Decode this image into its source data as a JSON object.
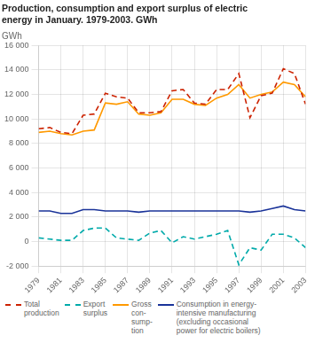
{
  "chart_data": {
    "type": "line",
    "title": "Production, consumption and export surplus of electric\nenergy in January. 1979-2003. GWh",
    "ylabel": "GWh",
    "x": [
      1979,
      1980,
      1981,
      1982,
      1983,
      1984,
      1985,
      1986,
      1987,
      1988,
      1989,
      1990,
      1991,
      1992,
      1993,
      1994,
      1995,
      1996,
      1997,
      1998,
      1999,
      2000,
      2001,
      2002,
      2003
    ],
    "series": [
      {
        "name": "Total\nproduction",
        "color": "#cc2200",
        "line_style": "dashed",
        "values": [
          9200,
          9300,
          8900,
          8800,
          10300,
          10400,
          12100,
          11800,
          11700,
          10500,
          10500,
          10600,
          12300,
          12400,
          11300,
          11200,
          12400,
          12400,
          13700,
          10100,
          11900,
          12100,
          14100,
          13700,
          11200
        ]
      },
      {
        "name": "Export\nsurplus",
        "color": "#00aaaa",
        "line_style": "dashed",
        "values": [
          300,
          200,
          100,
          100,
          900,
          1100,
          1100,
          300,
          200,
          100,
          700,
          900,
          -100,
          400,
          200,
          400,
          600,
          900,
          -1900,
          -500,
          -700,
          600,
          600,
          300,
          -500
        ]
      },
      {
        "name": "Gross\ncon-\nsump-\ntion",
        "color": "#ff9900",
        "line_style": "solid",
        "values": [
          8900,
          9000,
          8800,
          8700,
          9000,
          9100,
          11300,
          11200,
          11400,
          10400,
          10300,
          10500,
          11600,
          11600,
          11200,
          11100,
          11700,
          12000,
          12800,
          11700,
          12000,
          12200,
          13000,
          12800,
          11800
        ]
      },
      {
        "name": "Consumption in energy-\nintensive manufacturing\n(excluding occasional\npower for electric boilers)",
        "color": "#1a3399",
        "line_style": "solid",
        "values": [
          2500,
          2500,
          2300,
          2300,
          2600,
          2600,
          2500,
          2500,
          2500,
          2400,
          2500,
          2500,
          2500,
          2500,
          2500,
          2500,
          2500,
          2500,
          2500,
          2400,
          2500,
          2700,
          2900,
          2600,
          2500
        ]
      }
    ],
    "xlim": [
      1979,
      2003
    ],
    "xticks": [
      1979,
      1981,
      1983,
      1985,
      1987,
      1989,
      1991,
      1993,
      1995,
      1997,
      1999,
      2001,
      2003
    ],
    "ylim": [
      -2000,
      16000
    ],
    "yticks": [
      {
        "value": -2000,
        "label": "-2 000"
      },
      0,
      {
        "value": 2000,
        "label": "2 000"
      },
      {
        "value": 4000,
        "label": "4 000"
      },
      {
        "value": 6000,
        "label": "6 000"
      },
      {
        "value": 8000,
        "label": "8 000"
      },
      {
        "value": 10000,
        "label": "10 000"
      },
      {
        "value": 12000,
        "label": "12 000"
      },
      {
        "value": 14000,
        "label": "14 000"
      },
      {
        "value": 16000,
        "label": "16 000"
      }
    ],
    "grid": true,
    "legend": "bottom"
  }
}
